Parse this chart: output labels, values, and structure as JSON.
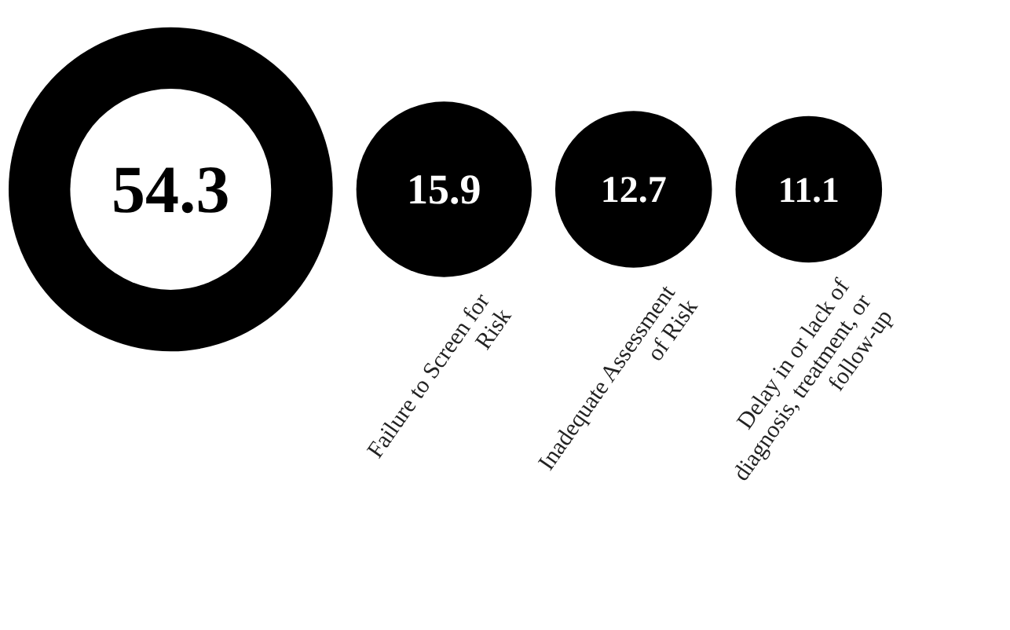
{
  "chart_data": {
    "type": "other",
    "categories": [
      null,
      "Failure to Screen for\nRisk",
      "Inadequate Assessment\nof Risk",
      "Delay in or lack of\ndiagnosis, treatment, or\nfollow-up"
    ],
    "values": [
      54.3,
      15.9,
      12.7,
      11.1
    ],
    "color": "#000000",
    "data_labels": true
  }
}
